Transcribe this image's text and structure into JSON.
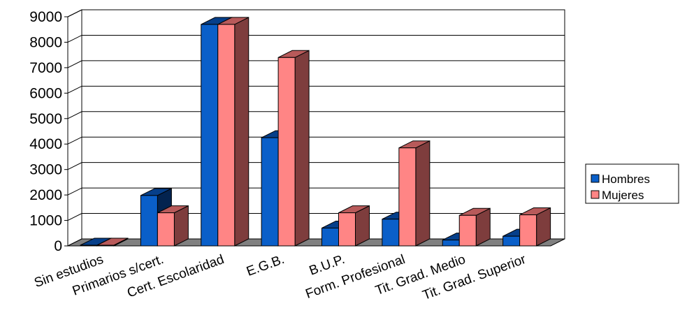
{
  "chart_data": {
    "type": "bar",
    "categories": [
      "Sin estudios",
      "Primarios s/cert.",
      "Cert. Escolaridad",
      "E.G.B.",
      "B.U.P.",
      "Form. Profesional",
      "Tit. Grad. Medio",
      "Tit. Grad. Superior"
    ],
    "series": [
      {
        "name": "Hombres",
        "values": [
          20,
          1980,
          8700,
          4250,
          700,
          1050,
          230,
          380
        ]
      },
      {
        "name": "Mujeres",
        "values": [
          10,
          1300,
          8700,
          7400,
          1300,
          3850,
          1200,
          1220
        ]
      }
    ],
    "colors": {
      "Hombres": {
        "front": "#0a5fc9",
        "top": "#063f8a",
        "side": "#03234f"
      },
      "Mujeres": {
        "front": "#ff8585",
        "top": "#b85a5a",
        "side": "#7e3d3d"
      },
      "floor": "#808080",
      "gridline": "#000000"
    },
    "yticks": [
      0,
      1000,
      2000,
      3000,
      4000,
      5000,
      6000,
      7000,
      8000,
      9000
    ],
    "ylim": [
      0,
      9000
    ],
    "grid": true,
    "legend_position": "right",
    "title": "",
    "xlabel": "",
    "ylabel": ""
  }
}
